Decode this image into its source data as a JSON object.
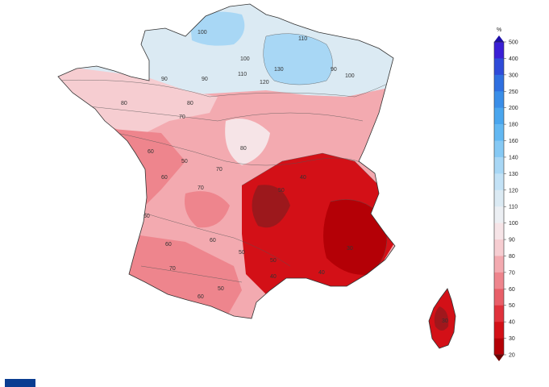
{
  "legend": {
    "unit": "%",
    "ticks": [
      "500",
      "400",
      "300",
      "250",
      "200",
      "180",
      "160",
      "140",
      "130",
      "120",
      "110",
      "100",
      "90",
      "80",
      "70",
      "60",
      "50",
      "40",
      "30",
      "20"
    ],
    "colors": [
      "#3a1fd6",
      "#2f4bd9",
      "#2f6fe0",
      "#3a8ee8",
      "#4aa6ee",
      "#63b8f2",
      "#86c9f4",
      "#a8d7f5",
      "#c3e2f6",
      "#dbeaf3",
      "#eceff3",
      "#f6e4e7",
      "#f6cdd1",
      "#f3aab0",
      "#ee858d",
      "#e85f69",
      "#e0323c",
      "#d31017",
      "#b40006"
    ],
    "max_cap_color": "#1d0fa8",
    "min_cap_color": "#6e0000"
  },
  "map": {
    "contour_labels": [
      "100",
      "110",
      "100",
      "120",
      "130",
      "90",
      "100",
      "110",
      "90",
      "90",
      "80",
      "70",
      "80",
      "60",
      "50",
      "60",
      "70",
      "80",
      "70",
      "60",
      "50",
      "50",
      "40",
      "30",
      "60",
      "50",
      "40",
      "50",
      "30",
      "40",
      "60",
      "70",
      "60"
    ],
    "regions": {
      "north": "#dbeaf3",
      "northeast_high": "#a8d7f5",
      "northwest": "#f6cdd1",
      "center": "#f3aab0",
      "west": "#ee858d",
      "southwest": "#ee858d",
      "southeast": "#d31017",
      "alps": "#b40006",
      "corsica": "#d31017"
    }
  }
}
